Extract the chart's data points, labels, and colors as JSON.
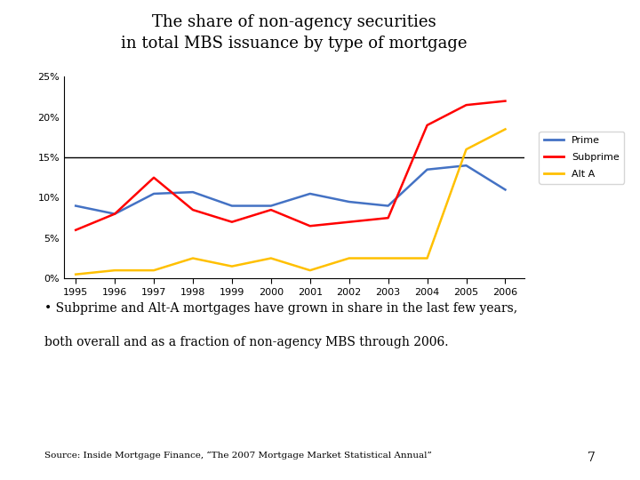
{
  "years": [
    1995,
    1996,
    1997,
    1998,
    1999,
    2000,
    2001,
    2002,
    2003,
    2004,
    2005,
    2006
  ],
  "prime": [
    0.09,
    0.08,
    0.105,
    0.107,
    0.09,
    0.09,
    0.105,
    0.095,
    0.09,
    0.135,
    0.14,
    0.11
  ],
  "subprime": [
    0.06,
    0.08,
    0.125,
    0.085,
    0.07,
    0.085,
    0.065,
    0.07,
    0.075,
    0.19,
    0.215,
    0.22
  ],
  "alt_a": [
    0.005,
    0.01,
    0.01,
    0.025,
    0.015,
    0.025,
    0.01,
    0.025,
    0.025,
    0.025,
    0.16,
    0.185
  ],
  "title_line1": "The share of non-agency securities",
  "title_line2": "in total MBS issuance by type of mortgage",
  "ylim": [
    0,
    0.25
  ],
  "yticks": [
    0,
    0.05,
    0.1,
    0.15,
    0.2,
    0.25
  ],
  "ytick_labels": [
    "0%",
    "5%",
    "10%",
    "15%",
    "20%",
    "25%"
  ],
  "prime_color": "#4472C4",
  "subprime_color": "#FF0000",
  "alt_a_color": "#FFC000",
  "hline_y": 0.15,
  "bullet_text_line1": "• Subprime and Alt-A mortgages have grown in share in the last few years,",
  "bullet_text_line2": "both overall and as a fraction of non-agency MBS through 2006.",
  "source_text": "Source: Inside Mortgage Finance, “The 2007 Mortgage Market Statistical Annual”",
  "page_num": "7"
}
